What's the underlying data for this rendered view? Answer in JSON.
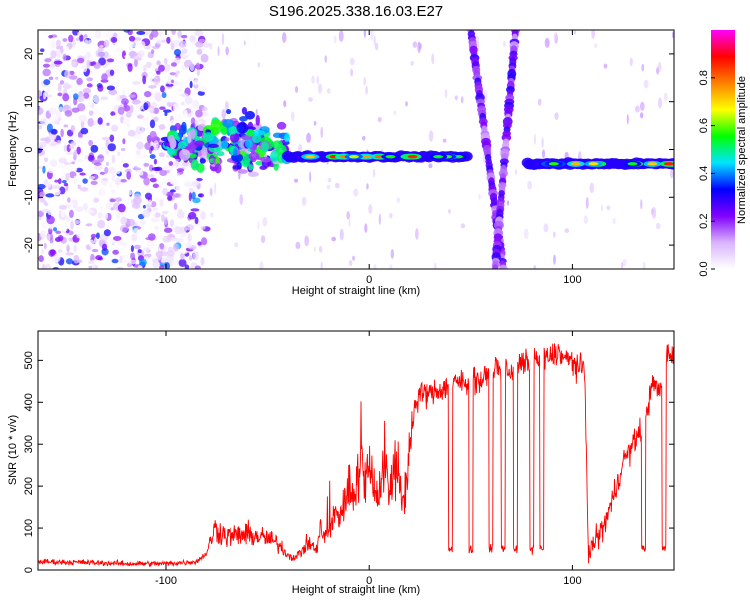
{
  "title": "S196.2025.338.16.03.E27",
  "chart_data": [
    {
      "type": "heatmap",
      "name": "spectrogram",
      "xlabel": "Height of straight line (km)",
      "ylabel": "Frequency (Hz)",
      "xlim": [
        -163,
        150
      ],
      "ylim": [
        -25,
        25
      ],
      "x_ticks": [
        -100,
        0,
        100
      ],
      "y_ticks": [
        -20,
        -10,
        0,
        10,
        20
      ],
      "colorbar": {
        "label": "Normalized spectral amplitude",
        "range": [
          0,
          1
        ],
        "ticks": [
          0.0,
          0.2,
          0.4,
          0.6,
          0.8
        ],
        "tick_labels": [
          "0.0",
          "0.2",
          "0.4",
          "0.6",
          "0.8"
        ],
        "colormap": [
          "#ffffff",
          "#d9b3ff",
          "#8000ff",
          "#0000ff",
          "#00e5ff",
          "#00ff00",
          "#ffff00",
          "#ff8000",
          "#ff0000",
          "#ff00ff"
        ]
      },
      "features": [
        {
          "name": "noise cloud",
          "x_range": [
            -163,
            -80
          ],
          "freq_range": [
            -25,
            25
          ],
          "amplitude": 0.05
        },
        {
          "name": "scattered blobs",
          "x_range": [
            -100,
            -40
          ],
          "freq_range": [
            -8,
            10
          ],
          "amplitude": 0.2
        },
        {
          "name": "tone line 1",
          "x_range": [
            -40,
            48
          ],
          "freq": -1.5,
          "amplitude": 0.9
        },
        {
          "name": "streak 1",
          "x_range": [
            48,
            66
          ],
          "freq_range": [
            -25,
            25
          ],
          "amplitude": 0.15
        },
        {
          "name": "streak 2",
          "x_range": [
            62,
            75
          ],
          "freq_range": [
            -25,
            25
          ],
          "amplitude": 0.15
        },
        {
          "name": "tone line 2",
          "x_range": [
            78,
            150
          ],
          "freq": -3,
          "amplitude": 0.9
        }
      ]
    },
    {
      "type": "line",
      "name": "snr",
      "xlabel": "Height of straight line (km)",
      "ylabel": "SNR (10 * v/v)",
      "xlim": [
        -163,
        150
      ],
      "ylim": [
        0,
        570
      ],
      "x_ticks": [
        -100,
        0,
        100
      ],
      "y_ticks": [
        0,
        100,
        200,
        300,
        400,
        500
      ],
      "series": [
        {
          "name": "SNR",
          "color": "#ff0000",
          "x": [
            -163,
            -140,
            -120,
            -100,
            -85,
            -80,
            -76,
            -70,
            -60,
            -50,
            -44,
            -40,
            -36,
            -30,
            -26,
            -24,
            -22,
            -20,
            -17,
            -14,
            -12,
            -10,
            -8,
            -6,
            -4,
            -2,
            0,
            2,
            4,
            6,
            8,
            10,
            12,
            14,
            16,
            18,
            20,
            22,
            25,
            30,
            35,
            40,
            45,
            48,
            50,
            55,
            60,
            62,
            65,
            70,
            75,
            80,
            85,
            90,
            93,
            95,
            97,
            100,
            103,
            106,
            108,
            110,
            115,
            120,
            125,
            130,
            135,
            140,
            143,
            145,
            147,
            150
          ],
          "y": [
            20,
            18,
            15,
            15,
            20,
            40,
            100,
            80,
            85,
            75,
            60,
            35,
            30,
            65,
            45,
            100,
            75,
            90,
            130,
            140,
            160,
            190,
            195,
            220,
            240,
            200,
            250,
            240,
            170,
            210,
            260,
            170,
            270,
            200,
            160,
            200,
            300,
            380,
            420,
            420,
            430,
            440,
            450,
            440,
            460,
            450,
            470,
            490,
            470,
            475,
            490,
            500,
            500,
            510,
            520,
            510,
            500,
            500,
            480,
            480,
            30,
            60,
            100,
            170,
            260,
            300,
            350,
            450,
            420,
            480,
            520,
            510
          ],
          "dips_x": [
            40,
            50,
            60,
            66,
            72,
            80,
            85,
            135,
            145
          ],
          "dip_value": 50
        }
      ]
    }
  ]
}
